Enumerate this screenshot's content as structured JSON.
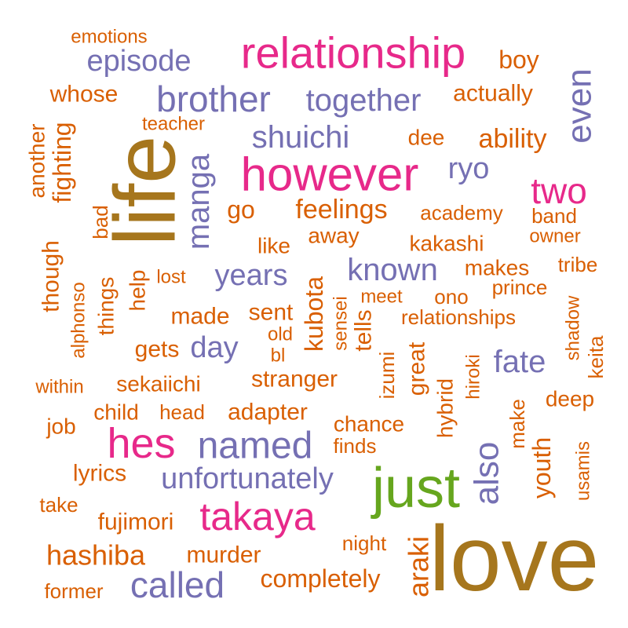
{
  "colors": {
    "orange": "#d95f02",
    "purple": "#7570b3",
    "magenta": "#e7298a",
    "green": "#66a61e",
    "brown": "#a6761d"
  },
  "words": [
    {
      "text": "love",
      "color": "brown"
    },
    {
      "text": "life",
      "color": "brown"
    },
    {
      "text": "just",
      "color": "green"
    },
    {
      "text": "however",
      "color": "magenta"
    },
    {
      "text": "relationship",
      "color": "magenta"
    },
    {
      "text": "hes",
      "color": "magenta"
    },
    {
      "text": "takaya",
      "color": "magenta"
    },
    {
      "text": "two",
      "color": "magenta"
    },
    {
      "text": "named",
      "color": "purple"
    },
    {
      "text": "brother",
      "color": "purple"
    },
    {
      "text": "together",
      "color": "purple"
    },
    {
      "text": "episode",
      "color": "purple"
    },
    {
      "text": "shuichi",
      "color": "purple"
    },
    {
      "text": "called",
      "color": "purple"
    },
    {
      "text": "unfortunately",
      "color": "purple"
    },
    {
      "text": "known",
      "color": "purple"
    },
    {
      "text": "years",
      "color": "purple"
    },
    {
      "text": "day",
      "color": "purple"
    },
    {
      "text": "fate",
      "color": "purple"
    },
    {
      "text": "ryo",
      "color": "purple"
    },
    {
      "text": "also",
      "color": "purple"
    },
    {
      "text": "even",
      "color": "purple"
    },
    {
      "text": "manga",
      "color": "purple"
    },
    {
      "text": "emotions",
      "color": "orange"
    },
    {
      "text": "boy",
      "color": "orange"
    },
    {
      "text": "whose",
      "color": "orange"
    },
    {
      "text": "actually",
      "color": "orange"
    },
    {
      "text": "teacher",
      "color": "orange"
    },
    {
      "text": "dee",
      "color": "orange"
    },
    {
      "text": "ability",
      "color": "orange"
    },
    {
      "text": "go",
      "color": "orange"
    },
    {
      "text": "feelings",
      "color": "orange"
    },
    {
      "text": "academy",
      "color": "orange"
    },
    {
      "text": "band",
      "color": "orange"
    },
    {
      "text": "away",
      "color": "orange"
    },
    {
      "text": "owner",
      "color": "orange"
    },
    {
      "text": "like",
      "color": "orange"
    },
    {
      "text": "kakashi",
      "color": "orange"
    },
    {
      "text": "makes",
      "color": "orange"
    },
    {
      "text": "tribe",
      "color": "orange"
    },
    {
      "text": "lost",
      "color": "orange"
    },
    {
      "text": "prince",
      "color": "orange"
    },
    {
      "text": "meet",
      "color": "orange"
    },
    {
      "text": "ono",
      "color": "orange"
    },
    {
      "text": "made",
      "color": "orange"
    },
    {
      "text": "sent",
      "color": "orange"
    },
    {
      "text": "relationships",
      "color": "orange"
    },
    {
      "text": "old",
      "color": "orange"
    },
    {
      "text": "gets",
      "color": "orange"
    },
    {
      "text": "bl",
      "color": "orange"
    },
    {
      "text": "within",
      "color": "orange"
    },
    {
      "text": "sekaiichi",
      "color": "orange"
    },
    {
      "text": "stranger",
      "color": "orange"
    },
    {
      "text": "deep",
      "color": "orange"
    },
    {
      "text": "job",
      "color": "orange"
    },
    {
      "text": "child",
      "color": "orange"
    },
    {
      "text": "head",
      "color": "orange"
    },
    {
      "text": "adapter",
      "color": "orange"
    },
    {
      "text": "chance",
      "color": "orange"
    },
    {
      "text": "finds",
      "color": "orange"
    },
    {
      "text": "lyrics",
      "color": "orange"
    },
    {
      "text": "take",
      "color": "orange"
    },
    {
      "text": "fujimori",
      "color": "orange"
    },
    {
      "text": "night",
      "color": "orange"
    },
    {
      "text": "hashiba",
      "color": "orange"
    },
    {
      "text": "murder",
      "color": "orange"
    },
    {
      "text": "former",
      "color": "orange"
    },
    {
      "text": "completely",
      "color": "orange"
    },
    {
      "text": "another",
      "color": "orange"
    },
    {
      "text": "fighting",
      "color": "orange"
    },
    {
      "text": "bad",
      "color": "orange"
    },
    {
      "text": "though",
      "color": "orange"
    },
    {
      "text": "alphonso",
      "color": "orange"
    },
    {
      "text": "things",
      "color": "orange"
    },
    {
      "text": "help",
      "color": "orange"
    },
    {
      "text": "kubota",
      "color": "orange"
    },
    {
      "text": "sensei",
      "color": "orange"
    },
    {
      "text": "tells",
      "color": "orange"
    },
    {
      "text": "izumi",
      "color": "orange"
    },
    {
      "text": "great",
      "color": "orange"
    },
    {
      "text": "hybrid",
      "color": "orange"
    },
    {
      "text": "hiroki",
      "color": "orange"
    },
    {
      "text": "make",
      "color": "orange"
    },
    {
      "text": "shadow",
      "color": "orange"
    },
    {
      "text": "keita",
      "color": "orange"
    },
    {
      "text": "youth",
      "color": "orange"
    },
    {
      "text": "usamis",
      "color": "orange"
    },
    {
      "text": "araki",
      "color": "orange"
    }
  ]
}
